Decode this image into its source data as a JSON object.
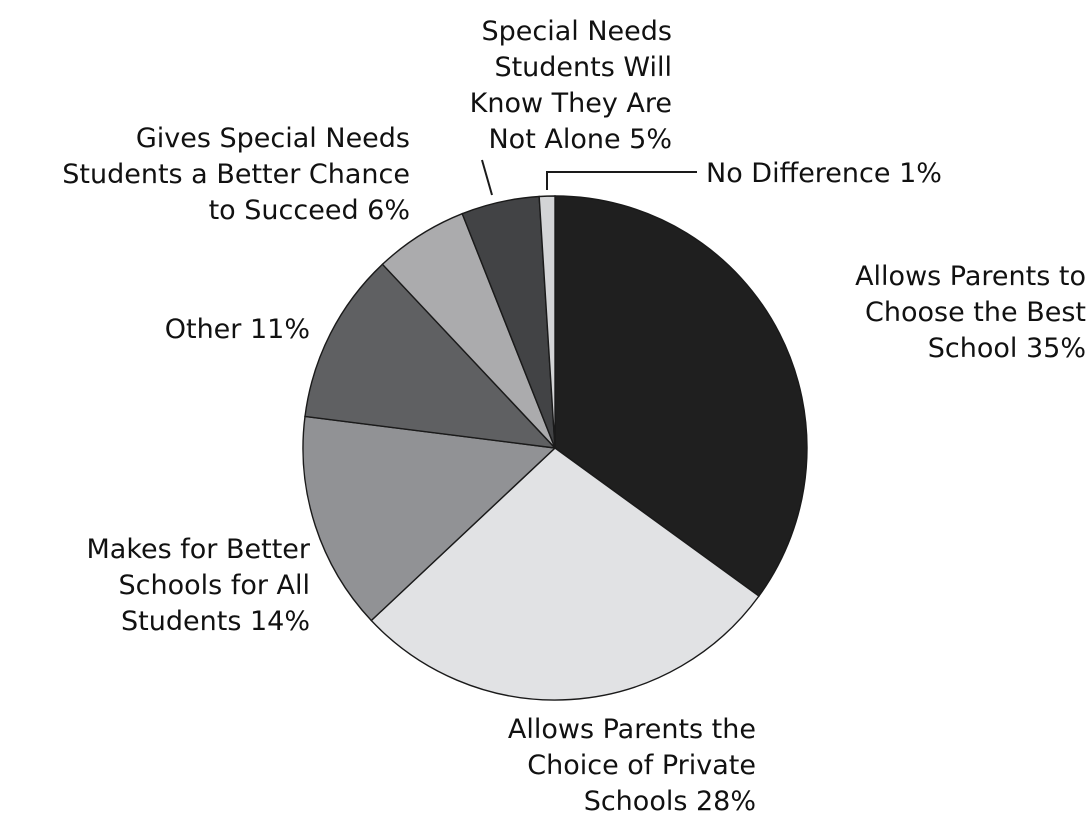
{
  "chart_data": {
    "type": "pie",
    "title": "",
    "slices": [
      {
        "label": "Allows Parents to Choose the Best School",
        "value": 35,
        "display_lines": [
          "Allows Parents to",
          "Choose the Best",
          "School 35%"
        ],
        "color": "#1f1f1f"
      },
      {
        "label": "Allows Parents the Choice of Private Schools",
        "value": 28,
        "display_lines": [
          "Allows Parents the",
          "Choice of Private",
          "Schools 28%"
        ],
        "color": "#e1e2e4"
      },
      {
        "label": "Makes for Better Schools for All Students",
        "value": 14,
        "display_lines": [
          "Makes for Better",
          "Schools for All",
          "Students 14%"
        ],
        "color": "#919295"
      },
      {
        "label": "Other",
        "value": 11,
        "display_lines": [
          "Other 11%"
        ],
        "color": "#5f6062"
      },
      {
        "label": "Gives Special Needs Students a Better Chance to Succeed",
        "value": 6,
        "display_lines": [
          "Gives Special Needs",
          "Students a Better Chance",
          "to Succeed 6%"
        ],
        "color": "#ababad"
      },
      {
        "label": "Special Needs Students Will Know They Are Not Alone",
        "value": 5,
        "display_lines": [
          "Special Needs",
          "Students Will",
          "Know They Are",
          "Not Alone 5%"
        ],
        "color": "#424345"
      },
      {
        "label": "No Difference",
        "value": 1,
        "display_lines": [
          "No Difference 1%"
        ],
        "color": "#d3d4d6"
      }
    ]
  }
}
